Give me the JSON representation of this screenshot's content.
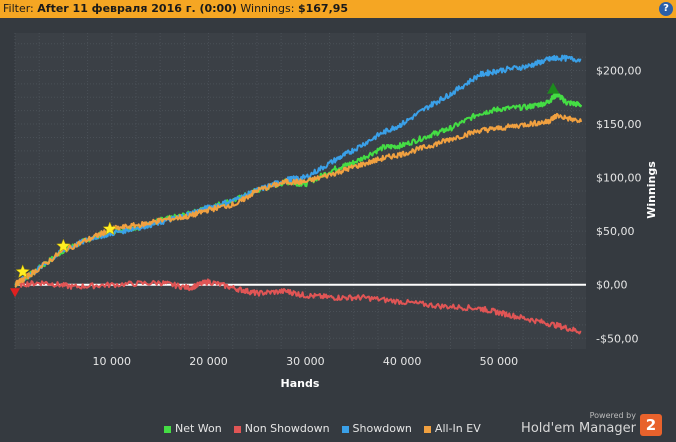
{
  "filter": {
    "prefix": "Filter:",
    "value": "After 11 февраля 2016 г. (0:00)",
    "winnings_label": "Winnings:",
    "winnings_value": "$167,95"
  },
  "help_label": "?",
  "colors": {
    "net_won": "#44dd44",
    "non_showdown": "#e05555",
    "showdown": "#3aa0e8",
    "allin_ev": "#f0a040"
  },
  "chart_data": {
    "type": "line",
    "xlabel": "Hands",
    "ylabel": "Winnings",
    "xlim": [
      0,
      59000
    ],
    "ylim": [
      -60,
      235
    ],
    "x_ticks": [
      10000,
      20000,
      30000,
      40000,
      50000
    ],
    "x_tick_labels": [
      "10 000",
      "20 000",
      "30 000",
      "40 000",
      "50 000"
    ],
    "y_ticks": [
      200,
      150,
      100,
      50,
      0,
      -50
    ],
    "y_tick_labels": [
      "$200,00",
      "$150,00",
      "$100,00",
      "$50,00",
      "$0,00",
      "-$50,00"
    ],
    "grid": true,
    "legend_position": "bottom",
    "series": [
      {
        "name": "Net Won",
        "color": "#44dd44",
        "x": [
          0,
          2000,
          5000,
          8000,
          10000,
          13000,
          15000,
          18000,
          20000,
          23000,
          25000,
          28000,
          30000,
          33000,
          35000,
          38000,
          40000,
          43000,
          45000,
          48000,
          50000,
          53000,
          55000,
          56000,
          57000,
          58500
        ],
        "y": [
          0,
          12,
          32,
          44,
          50,
          54,
          60,
          66,
          72,
          80,
          88,
          96,
          94,
          108,
          114,
          128,
          130,
          140,
          146,
          160,
          164,
          166,
          170,
          178,
          170,
          168
        ]
      },
      {
        "name": "Non Showdown",
        "color": "#e05555",
        "x": [
          0,
          3000,
          6000,
          10000,
          15000,
          18000,
          20000,
          23000,
          25000,
          28000,
          30000,
          33000,
          36000,
          40000,
          44000,
          48000,
          50000,
          53000,
          56000,
          58500
        ],
        "y": [
          0,
          2,
          -2,
          0,
          2,
          -3,
          3,
          -4,
          -8,
          -6,
          -10,
          -12,
          -12,
          -16,
          -20,
          -22,
          -26,
          -32,
          -38,
          -44
        ]
      },
      {
        "name": "Showdown",
        "color": "#3aa0e8",
        "x": [
          0,
          2000,
          5000,
          8000,
          10000,
          13000,
          15000,
          18000,
          20000,
          23000,
          25000,
          28000,
          30000,
          33000,
          35000,
          38000,
          40000,
          43000,
          45000,
          48000,
          50000,
          53000,
          55000,
          56000,
          58500
        ],
        "y": [
          0,
          12,
          32,
          44,
          48,
          54,
          58,
          66,
          72,
          80,
          88,
          98,
          100,
          116,
          126,
          142,
          150,
          168,
          178,
          196,
          200,
          204,
          210,
          212,
          210
        ]
      },
      {
        "name": "All-In EV",
        "color": "#f0a040",
        "x": [
          0,
          2000,
          5000,
          8000,
          10000,
          13000,
          15000,
          18000,
          20000,
          23000,
          25000,
          28000,
          30000,
          33000,
          35000,
          38000,
          40000,
          43000,
          45000,
          48000,
          50000,
          53000,
          55000,
          56000,
          58500
        ],
        "y": [
          0,
          12,
          32,
          44,
          52,
          56,
          60,
          64,
          70,
          76,
          88,
          96,
          96,
          104,
          110,
          118,
          122,
          130,
          136,
          144,
          146,
          150,
          152,
          158,
          152
        ]
      }
    ],
    "markers": [
      {
        "kind": "star",
        "color": "#ffee22",
        "x": 800,
        "y": 12
      },
      {
        "kind": "star",
        "color": "#ffee22",
        "x": 5000,
        "y": 36
      },
      {
        "kind": "star",
        "color": "#ffee22",
        "x": 9800,
        "y": 52
      },
      {
        "kind": "triangle-down",
        "color": "#e02020",
        "x": 0,
        "y": -8
      },
      {
        "kind": "triangle-up",
        "color": "#1d8a1d",
        "x": 55600,
        "y": 184
      }
    ]
  },
  "legend": [
    {
      "label": "Net Won",
      "color": "#44dd44"
    },
    {
      "label": "Non Showdown",
      "color": "#e05555"
    },
    {
      "label": "Showdown",
      "color": "#3aa0e8"
    },
    {
      "label": "All-In EV",
      "color": "#f0a040"
    }
  ],
  "branding": {
    "powered": "Powered by",
    "name": "Hold'em Manager",
    "logo": "2"
  }
}
